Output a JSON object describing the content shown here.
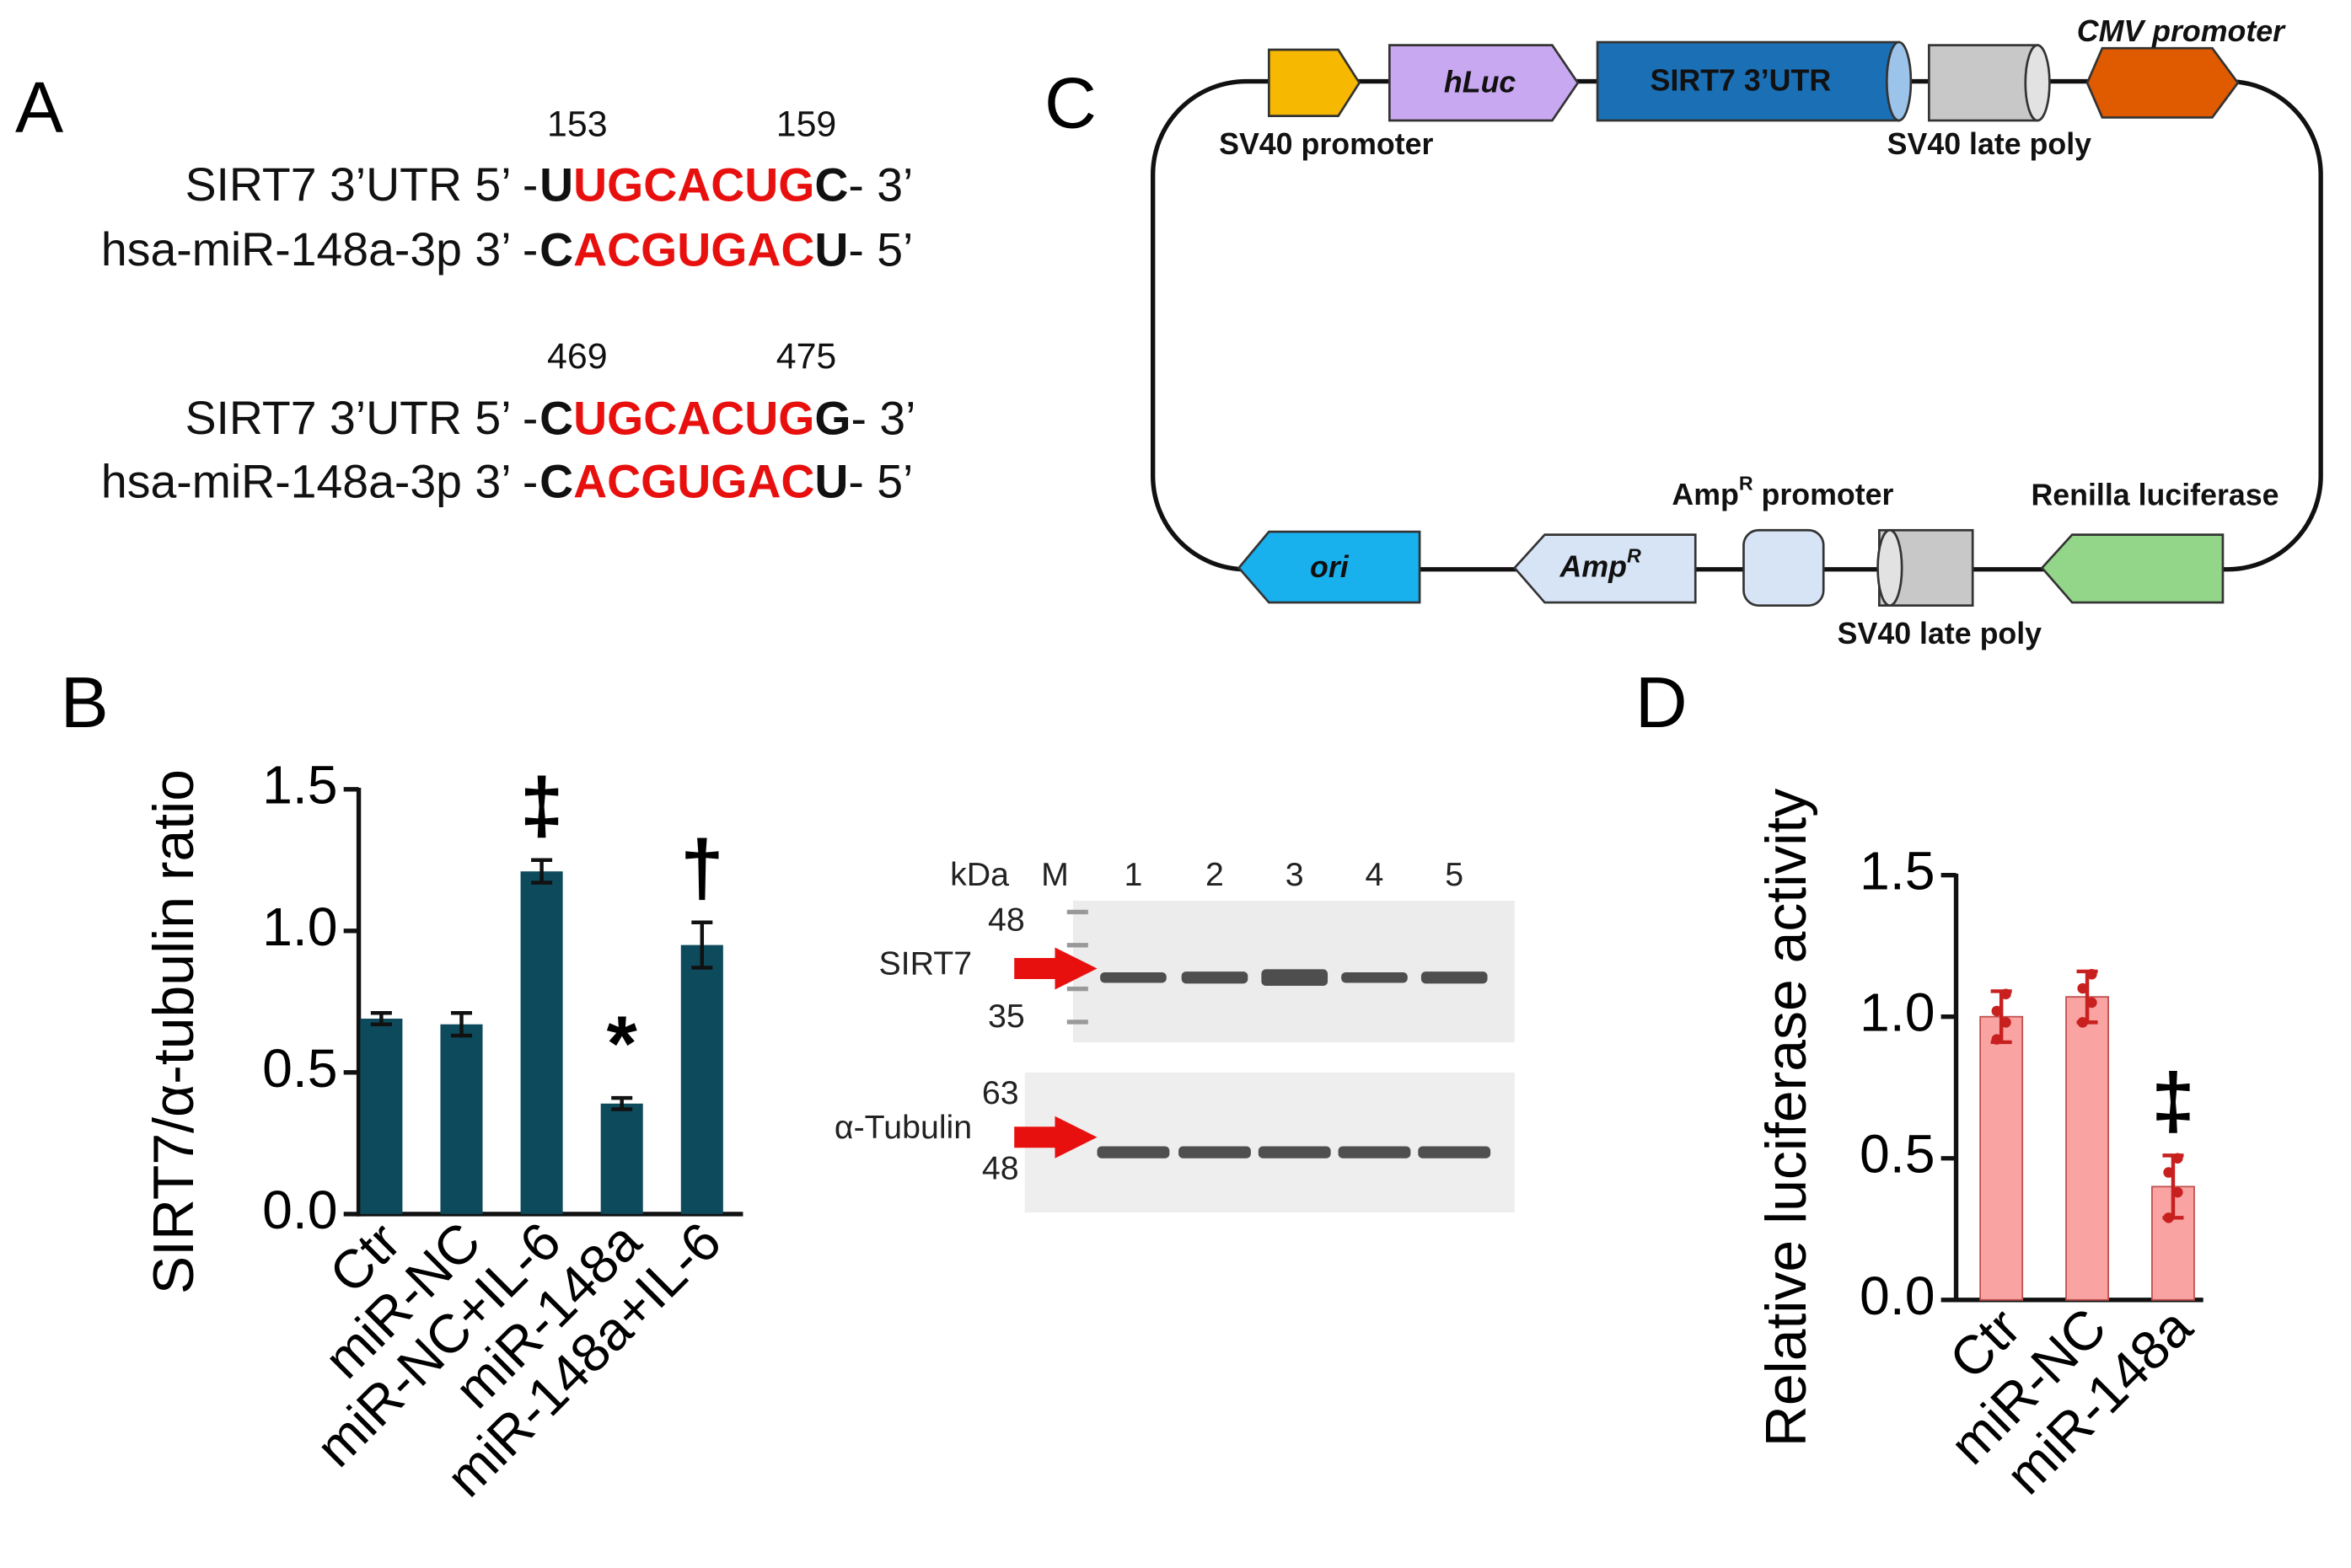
{
  "panel_a": {
    "label": "A",
    "sites": [
      {
        "start": "153",
        "end": "159",
        "rows": [
          {
            "prefix": "SIRT7 3’UTR 5’ -",
            "seq": [
              "U",
              "UGCACUG",
              "C"
            ],
            "suffix": "- 3’"
          },
          {
            "prefix": "hsa-miR-148a-3p 3’ -",
            "seq": [
              "C",
              "ACGUGAC",
              "U"
            ],
            "suffix": "- 5’"
          }
        ]
      },
      {
        "start": "469",
        "end": "475",
        "rows": [
          {
            "prefix": "SIRT7 3’UTR 5’ -",
            "seq": [
              "C",
              "UGCACUG",
              "G"
            ],
            "suffix": "- 3’"
          },
          {
            "prefix": "hsa-miR-148a-3p 3’ -",
            "seq": [
              "C",
              "ACGUGAC",
              "U"
            ],
            "suffix": "- 5’"
          }
        ]
      }
    ]
  },
  "panel_c": {
    "label": "C",
    "features": {
      "sv40_promoter": "SV40 promoter",
      "hluc": "hLuc",
      "utr": "SIRT7 3’UTR",
      "sv40_poly_top": "SV40 late poly",
      "cmv": "CMV promoter",
      "ampr_promoter": [
        "Amp",
        "R",
        " promoter"
      ],
      "renilla": "Renilla luciferase",
      "ori": "ori",
      "ampr": [
        "Amp",
        "R"
      ],
      "sv40_poly_bottom": "SV40 late poly"
    }
  },
  "blot": {
    "header": {
      "kda": "kDa",
      "marker": "M",
      "lanes": [
        "1",
        "2",
        "3",
        "4",
        "5"
      ]
    },
    "sirt7": {
      "name": "SIRT7",
      "markers": [
        "48",
        "35"
      ]
    },
    "tubulin": {
      "name": "α-Tubulin",
      "markers": [
        "63",
        "48"
      ]
    }
  },
  "chart_data": [
    {
      "type": "bar",
      "panel_label": "B",
      "y_label": "SIRT7/α-tubulin ratio",
      "categories": [
        "Ctr",
        "miR-NC",
        "miR-NC+IL-6",
        "miR-148a",
        "miR-148a+IL-6"
      ],
      "values": [
        0.69,
        0.67,
        1.21,
        0.39,
        0.95
      ],
      "errors": [
        0.02,
        0.04,
        0.04,
        0.02,
        0.08
      ],
      "annotations": [
        null,
        null,
        "‡",
        "*",
        "†"
      ],
      "color": "#0d4a5c",
      "ylim": [
        0,
        1.5
      ],
      "yticks": [
        {
          "value": 0,
          "label": "0.0"
        },
        {
          "value": 0.5,
          "label": "0.5"
        },
        {
          "value": 1,
          "label": "1.0"
        },
        {
          "value": 1.5,
          "label": "1.5"
        }
      ]
    },
    {
      "type": "bar",
      "panel_label": "D",
      "y_label": "Relative luciferase activity",
      "categories": [
        "Ctr",
        "miR-NC",
        "miR-148a"
      ],
      "values": [
        1.0,
        1.07,
        0.4
      ],
      "errors": [
        0.09,
        0.09,
        0.11
      ],
      "points": [
        [
          0.92,
          0.98,
          1.02,
          1.08
        ],
        [
          0.98,
          1.05,
          1.1,
          1.15
        ],
        [
          0.29,
          0.38,
          0.45,
          0.5
        ]
      ],
      "annotations": [
        null,
        null,
        "‡"
      ],
      "color": "#f9a3a3",
      "point_color": "#c8201e",
      "ylim": [
        0,
        1.5
      ],
      "yticks": [
        {
          "value": 0,
          "label": "0.0"
        },
        {
          "value": 0.5,
          "label": "0.5"
        },
        {
          "value": 1,
          "label": "1.0"
        },
        {
          "value": 1.5,
          "label": "1.5"
        }
      ]
    }
  ]
}
